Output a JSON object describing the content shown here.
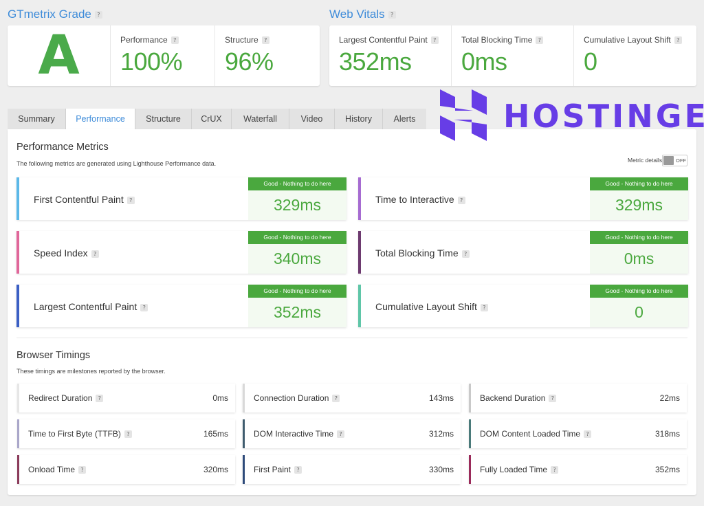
{
  "grade": {
    "title": "GTmetrix Grade",
    "letter": "A",
    "performance_label": "Performance",
    "performance_value": "100%",
    "structure_label": "Structure",
    "structure_value": "96%"
  },
  "web_vitals": {
    "title": "Web Vitals",
    "items": [
      {
        "label": "Largest Contentful Paint",
        "value": "352ms"
      },
      {
        "label": "Total Blocking Time",
        "value": "0ms"
      },
      {
        "label": "Cumulative Layout Shift",
        "value": "0"
      }
    ]
  },
  "help_glyph": "?",
  "tabs": [
    "Summary",
    "Performance",
    "Structure",
    "CrUX",
    "Waterfall",
    "Video",
    "History",
    "Alerts"
  ],
  "active_tab": "Performance",
  "logo": {
    "text": "HOSTINGER",
    "color": "#673de6"
  },
  "performance_metrics": {
    "title": "Performance Metrics",
    "subtitle": "The following metrics are generated using Lighthouse Performance data.",
    "toggle_label": "Metric details",
    "toggle_state": "OFF",
    "badge_text": "Good - Nothing to do here",
    "items": [
      {
        "label": "First Contentful Paint",
        "value": "329ms",
        "color": "#5bb8e8"
      },
      {
        "label": "Time to Interactive",
        "value": "329ms",
        "color": "#a66bd1"
      },
      {
        "label": "Speed Index",
        "value": "340ms",
        "color": "#e0679a"
      },
      {
        "label": "Total Blocking Time",
        "value": "0ms",
        "color": "#6d3a6f"
      },
      {
        "label": "Largest Contentful Paint",
        "value": "352ms",
        "color": "#3b5fc4"
      },
      {
        "label": "Cumulative Layout Shift",
        "value": "0",
        "color": "#5fc6a8"
      }
    ]
  },
  "browser_timings": {
    "title": "Browser Timings",
    "subtitle": "These timings are milestones reported by the browser.",
    "items": [
      {
        "label": "Redirect Duration",
        "value": "0ms",
        "color": "#e6e6e6"
      },
      {
        "label": "Connection Duration",
        "value": "143ms",
        "color": "#d9d9d9"
      },
      {
        "label": "Backend Duration",
        "value": "22ms",
        "color": "#c9c9c9"
      },
      {
        "label": "Time to First Byte (TTFB)",
        "value": "165ms",
        "color": "#a9a6c9"
      },
      {
        "label": "DOM Interactive Time",
        "value": "312ms",
        "color": "#3f5c6e"
      },
      {
        "label": "DOM Content Loaded Time",
        "value": "318ms",
        "color": "#4a7a7a"
      },
      {
        "label": "Onload Time",
        "value": "320ms",
        "color": "#8a3a5a"
      },
      {
        "label": "First Paint",
        "value": "330ms",
        "color": "#2e4a7a"
      },
      {
        "label": "Fully Loaded Time",
        "value": "352ms",
        "color": "#9a2a5a"
      }
    ]
  }
}
